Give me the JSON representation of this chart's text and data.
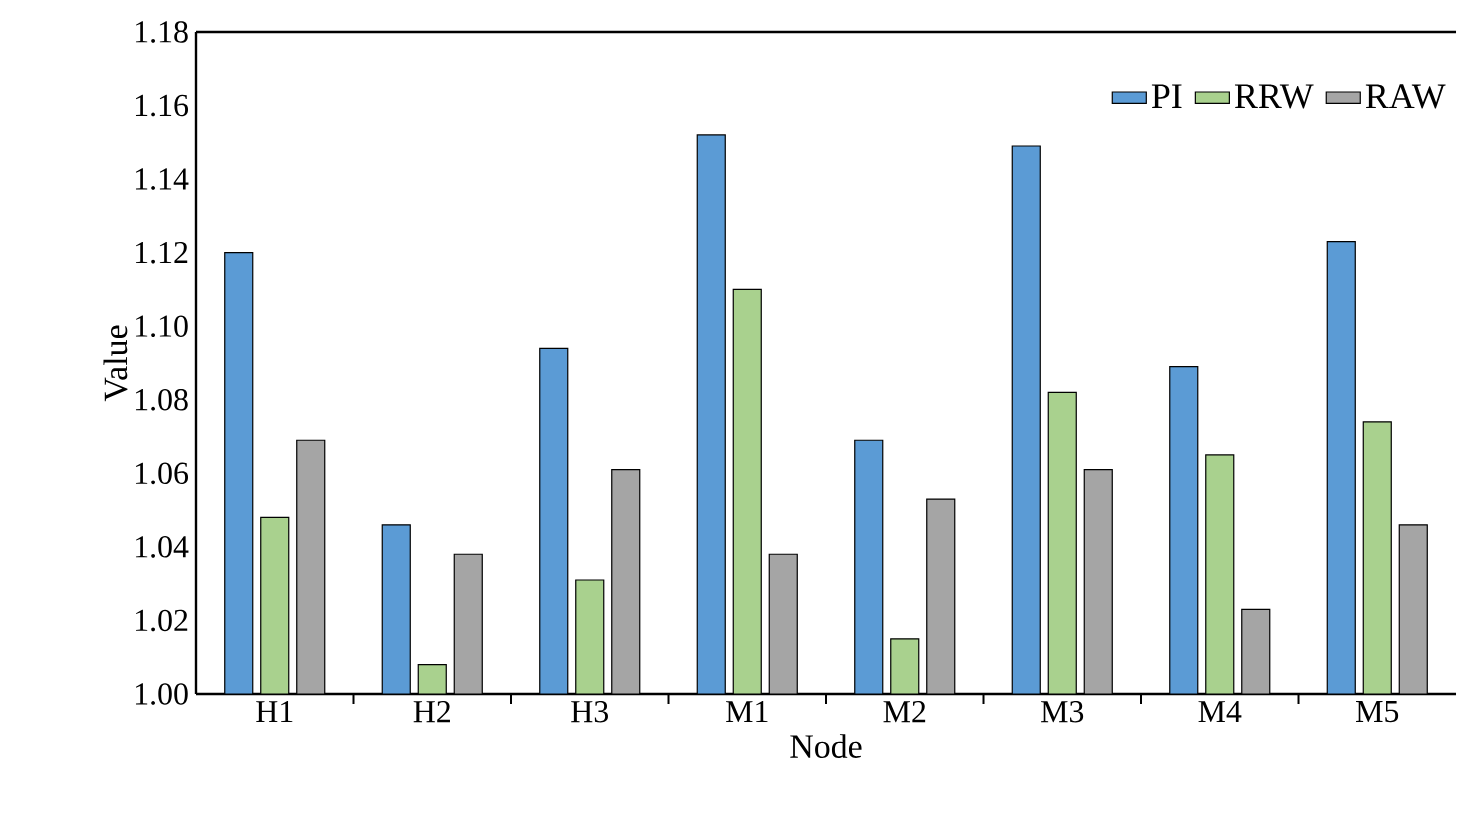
{
  "chart_data": {
    "type": "bar",
    "xlabel": "Node",
    "ylabel": "Value",
    "categories": [
      "H1",
      "H2",
      "H3",
      "M1",
      "M2",
      "M3",
      "M4",
      "M5"
    ],
    "series": [
      {
        "name": "PI",
        "color": "#5b9bd5",
        "values": [
          1.12,
          1.046,
          1.094,
          1.152,
          1.069,
          1.149,
          1.089,
          1.123
        ]
      },
      {
        "name": "RRW",
        "color": "#a9d18e",
        "values": [
          1.048,
          1.008,
          1.031,
          1.11,
          1.015,
          1.082,
          1.065,
          1.074
        ]
      },
      {
        "name": "RAW",
        "color": "#a5a5a5",
        "values": [
          1.069,
          1.038,
          1.061,
          1.038,
          1.053,
          1.061,
          1.023,
          1.046
        ]
      }
    ],
    "ylim": [
      1.0,
      1.18
    ],
    "yticks": [
      {
        "value": 1.0,
        "label": "1.00"
      },
      1.02,
      1.04,
      1.06,
      1.08,
      {
        "value": 1.1,
        "label": "1.10"
      },
      1.12,
      1.14,
      1.16,
      1.18
    ],
    "legend": "top right"
  }
}
